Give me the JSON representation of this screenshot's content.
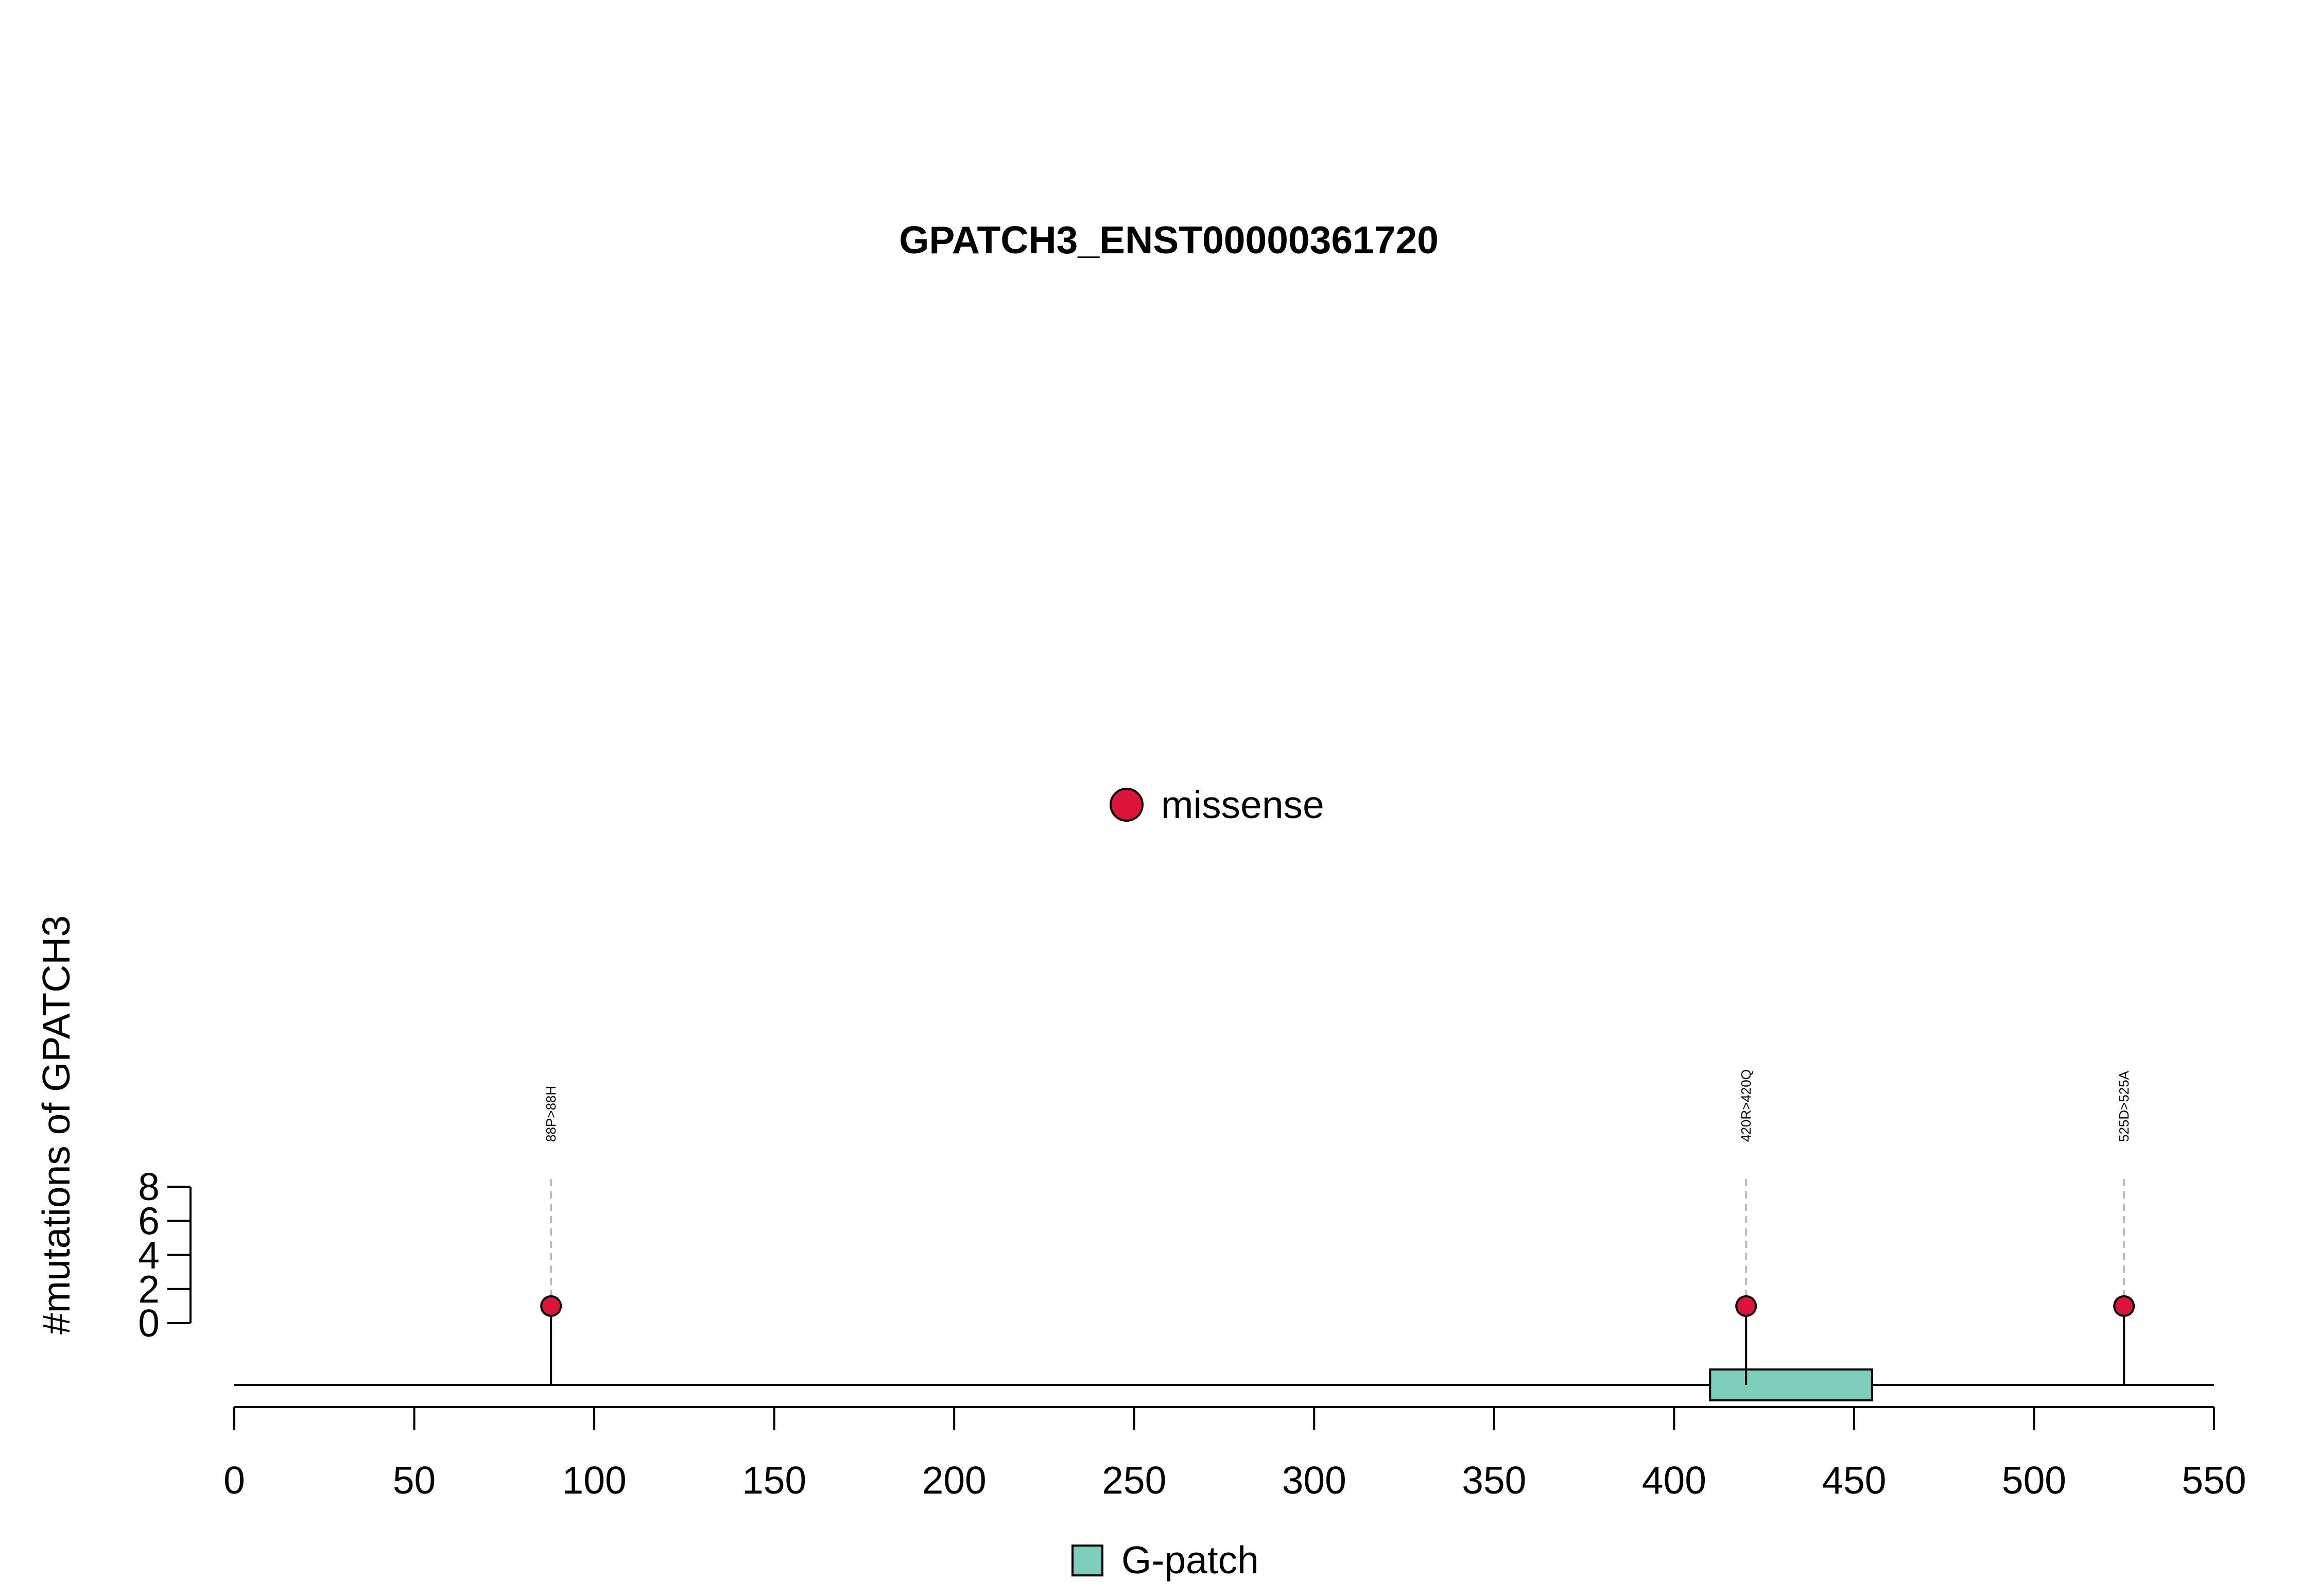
{
  "chart_data": {
    "type": "lollipop",
    "title": "GPATCH3_ENST00000361720",
    "ylabel": "#mutations of GPATCH3",
    "xlabel": "",
    "xlim": [
      0,
      550
    ],
    "x_ticks": [
      0,
      50,
      100,
      150,
      200,
      250,
      300,
      350,
      400,
      450,
      500,
      550
    ],
    "ylim": [
      0,
      8
    ],
    "y_ticks": [
      0,
      2,
      4,
      6,
      8
    ],
    "mutation_legend": [
      {
        "label": "missense",
        "color": "#DC143C"
      }
    ],
    "mutations": [
      {
        "position": 88,
        "count": 1,
        "label": "88P>88H",
        "type": "missense"
      },
      {
        "position": 420,
        "count": 1,
        "label": "420R>420Q",
        "type": "missense"
      },
      {
        "position": 525,
        "count": 1,
        "label": "525D>525A",
        "type": "missense"
      }
    ],
    "domains": [
      {
        "name": "G-patch",
        "start": 410,
        "end": 455,
        "color": "#7FCDBB"
      }
    ],
    "domain_legend": [
      {
        "label": "G-patch",
        "color": "#7FCDBB"
      }
    ],
    "grid": false
  }
}
